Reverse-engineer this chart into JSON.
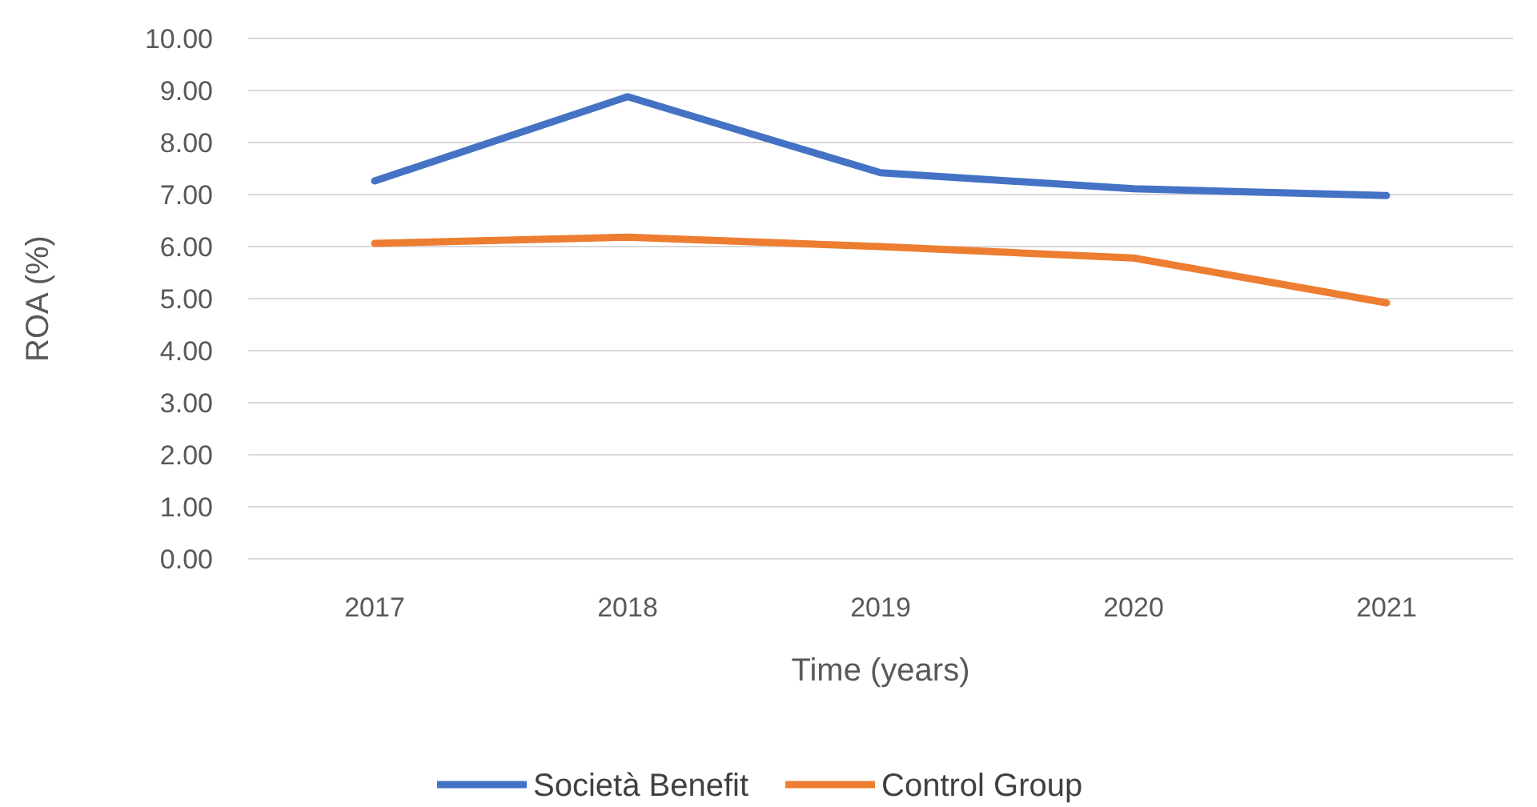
{
  "chart_data": {
    "type": "line",
    "xlabel": "Time (years)",
    "ylabel": "ROA (%)",
    "categories": [
      "2017",
      "2018",
      "2019",
      "2020",
      "2021"
    ],
    "series": [
      {
        "name": "Società Benefit",
        "color": "#4472c4",
        "values": [
          7.26,
          8.88,
          7.42,
          7.11,
          6.98
        ]
      },
      {
        "name": "Control Group",
        "color": "#ed7d31",
        "values": [
          6.06,
          6.18,
          6.0,
          5.78,
          4.92
        ]
      }
    ],
    "ylim": [
      0,
      10
    ],
    "yticks": [
      {
        "value": 0,
        "label": "0.00"
      },
      {
        "value": 1,
        "label": "1.00"
      },
      {
        "value": 2,
        "label": "2.00"
      },
      {
        "value": 3,
        "label": "3.00"
      },
      {
        "value": 4,
        "label": "4.00"
      },
      {
        "value": 5,
        "label": "5.00"
      },
      {
        "value": 6,
        "label": "6.00"
      },
      {
        "value": 7,
        "label": "7.00"
      },
      {
        "value": 8,
        "label": "8.00"
      },
      {
        "value": 9,
        "label": "9.00"
      },
      {
        "value": 10,
        "label": "10.00"
      }
    ],
    "grid": "y",
    "legend": "bottom",
    "marker": "none",
    "line_style": "solid"
  }
}
